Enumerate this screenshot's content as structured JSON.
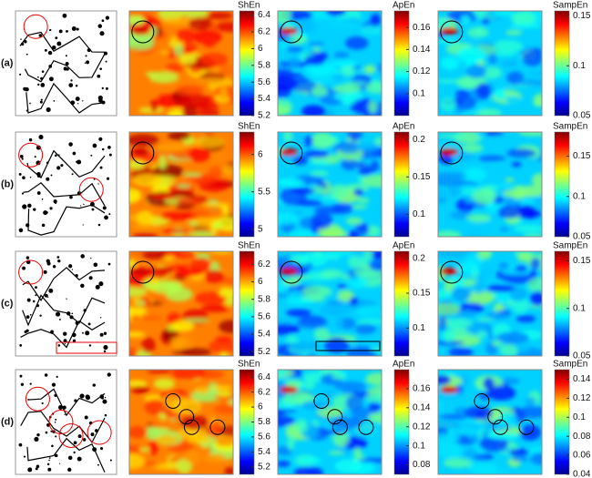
{
  "rows": [
    {
      "label": "(a)",
      "colorbars": [
        {
          "title": "ShEn",
          "lim": [
            5.2,
            6.45
          ],
          "ticks": [
            5.2,
            5.4,
            5.6,
            5.8,
            6,
            6.2,
            6.4
          ]
        },
        {
          "title": "ApEn",
          "lim": [
            0.08,
            0.175
          ],
          "ticks": [
            0.1,
            0.12,
            0.14,
            0.16
          ]
        },
        {
          "title": "SampEn",
          "lim": [
            0.05,
            0.155
          ],
          "ticks": [
            0.05,
            0.1,
            0.15
          ]
        }
      ]
    },
    {
      "label": "(b)",
      "colorbars": [
        {
          "title": "ShEn",
          "lim": [
            4.9,
            6.3
          ],
          "ticks": [
            5,
            5.5,
            6
          ]
        },
        {
          "title": "ApEn",
          "lim": [
            0.07,
            0.21
          ],
          "ticks": [
            0.1,
            0.15,
            0.2
          ]
        },
        {
          "title": "SampEn",
          "lim": [
            0.05,
            0.18
          ],
          "ticks": [
            0.05,
            0.1,
            0.15
          ]
        }
      ]
    },
    {
      "label": "(c)",
      "colorbars": [
        {
          "title": "ShEn",
          "lim": [
            5.15,
            6.35
          ],
          "ticks": [
            5.2,
            5.4,
            5.6,
            5.8,
            6,
            6.2
          ]
        },
        {
          "title": "ApEn",
          "lim": [
            0.06,
            0.21
          ],
          "ticks": [
            0.1,
            0.15,
            0.2
          ]
        },
        {
          "title": "SampEn",
          "lim": [
            0.05,
            0.16
          ],
          "ticks": [
            0.05,
            0.1,
            0.15
          ]
        }
      ]
    },
    {
      "label": "(d)",
      "colorbars": [
        {
          "title": "ShEn",
          "lim": [
            5.1,
            6.5
          ],
          "ticks": [
            5.2,
            5.4,
            5.6,
            5.8,
            6,
            6.2,
            6.4
          ]
        },
        {
          "title": "ApEn",
          "lim": [
            0.07,
            0.18
          ],
          "ticks": [
            0.08,
            0.1,
            0.12,
            0.14,
            0.16
          ]
        },
        {
          "title": "SampEn",
          "lim": [
            0.04,
            0.15
          ],
          "ticks": [
            0.04,
            0.06,
            0.08,
            0.1,
            0.12,
            0.14
          ]
        }
      ]
    }
  ]
}
